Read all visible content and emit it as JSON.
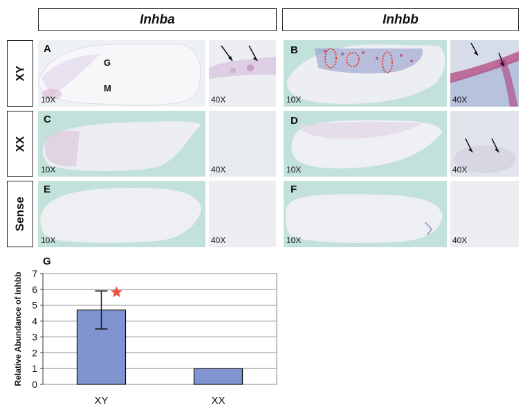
{
  "headers": {
    "left_gene": "Inhba",
    "right_gene": "Inhbb"
  },
  "rows": [
    {
      "label": "XY"
    },
    {
      "label": "XX"
    },
    {
      "label": "Sense"
    }
  ],
  "panels": {
    "A": {
      "letter": "A",
      "mag_low": "10X",
      "mag_high": "40X",
      "region_g": "G",
      "region_m": "M"
    },
    "B": {
      "letter": "B",
      "mag_low": "10X",
      "mag_high": "40X"
    },
    "C": {
      "letter": "C",
      "mag_low": "10X",
      "mag_high": "40X"
    },
    "D": {
      "letter": "D",
      "mag_low": "10X",
      "mag_high": "40X"
    },
    "E": {
      "letter": "E",
      "mag_low": "10X",
      "mag_high": "40X"
    },
    "F": {
      "letter": "F",
      "mag_low": "10X",
      "mag_high": "40X"
    }
  },
  "colors": {
    "background_tissue": "#bfe1d9",
    "tissue": "#eeeef1",
    "stain": "#a04a8a",
    "bar": "#8094cf",
    "star": "#e8543c"
  },
  "chart_data": {
    "panel_letter": "G",
    "type": "bar",
    "categories": [
      "XY",
      "XX"
    ],
    "values": [
      4.7,
      1.0
    ],
    "error_bars": [
      1.2,
      null
    ],
    "significance_marker": "XY",
    "ylabel": "Relative Abundance of Inhbb",
    "xlabel": "",
    "ylim": [
      0,
      7
    ],
    "yticks": [
      0,
      1,
      2,
      3,
      4,
      5,
      6,
      7
    ],
    "grid": true
  }
}
